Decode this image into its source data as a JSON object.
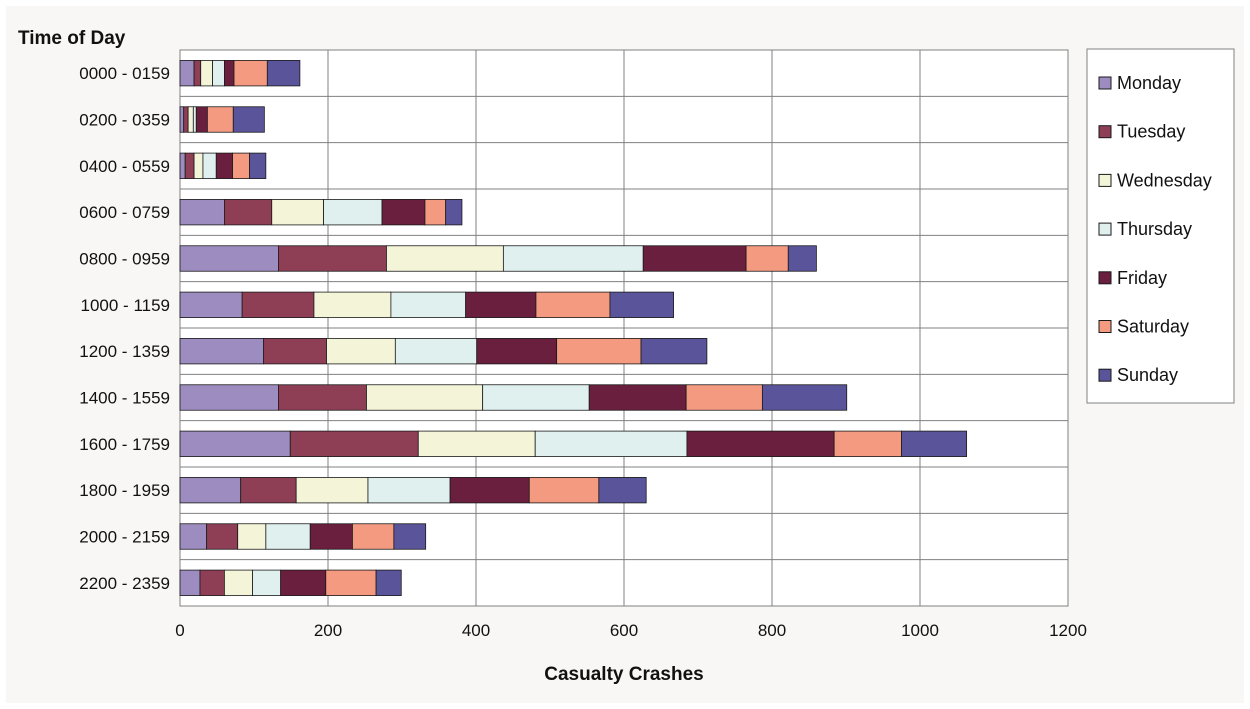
{
  "chart_data": {
    "type": "bar",
    "orientation": "horizontal",
    "stacked": true,
    "ylabel": "Time of Day",
    "xlabel": "Casualty Crashes",
    "xlim": [
      0,
      1200
    ],
    "x_ticks": [
      "0",
      "200",
      "400",
      "600",
      "800",
      "1000",
      "1200"
    ],
    "grid": true,
    "legend_position": "right",
    "categories": [
      "0000 - 0159",
      "0200 - 0359",
      "0400 - 0559",
      "0600 - 0759",
      "0800 - 0959",
      "1000 - 1159",
      "1200 - 1359",
      "1400 - 1559",
      "1600 - 1759",
      "1800 - 1959",
      "2000 - 2159",
      "2200 - 2359"
    ],
    "series": [
      {
        "name": "Monday",
        "color": "#9d8cbf",
        "values": [
          19,
          5,
          7,
          60,
          133,
          84,
          113,
          133,
          149,
          82,
          36,
          27
        ]
      },
      {
        "name": "Tuesday",
        "color": "#8e3e55",
        "values": [
          9,
          6,
          12,
          64,
          146,
          97,
          85,
          119,
          173,
          75,
          42,
          33
        ]
      },
      {
        "name": "Wednesday",
        "color": "#f4f4d9",
        "values": [
          16,
          7,
          12,
          70,
          158,
          104,
          93,
          157,
          158,
          97,
          38,
          38
        ]
      },
      {
        "name": "Thursday",
        "color": "#dff0ef",
        "values": [
          16,
          4,
          18,
          79,
          189,
          101,
          110,
          144,
          205,
          111,
          60,
          38
        ]
      },
      {
        "name": "Friday",
        "color": "#6b1f3e",
        "values": [
          13,
          15,
          22,
          58,
          139,
          95,
          108,
          131,
          199,
          107,
          57,
          61
        ]
      },
      {
        "name": "Saturday",
        "color": "#f39a80",
        "values": [
          45,
          35,
          23,
          28,
          57,
          100,
          114,
          103,
          91,
          94,
          56,
          68
        ]
      },
      {
        "name": "Sunday",
        "color": "#5a549a",
        "values": [
          44,
          42,
          22,
          22,
          38,
          86,
          89,
          114,
          88,
          64,
          43,
          34
        ]
      }
    ]
  }
}
